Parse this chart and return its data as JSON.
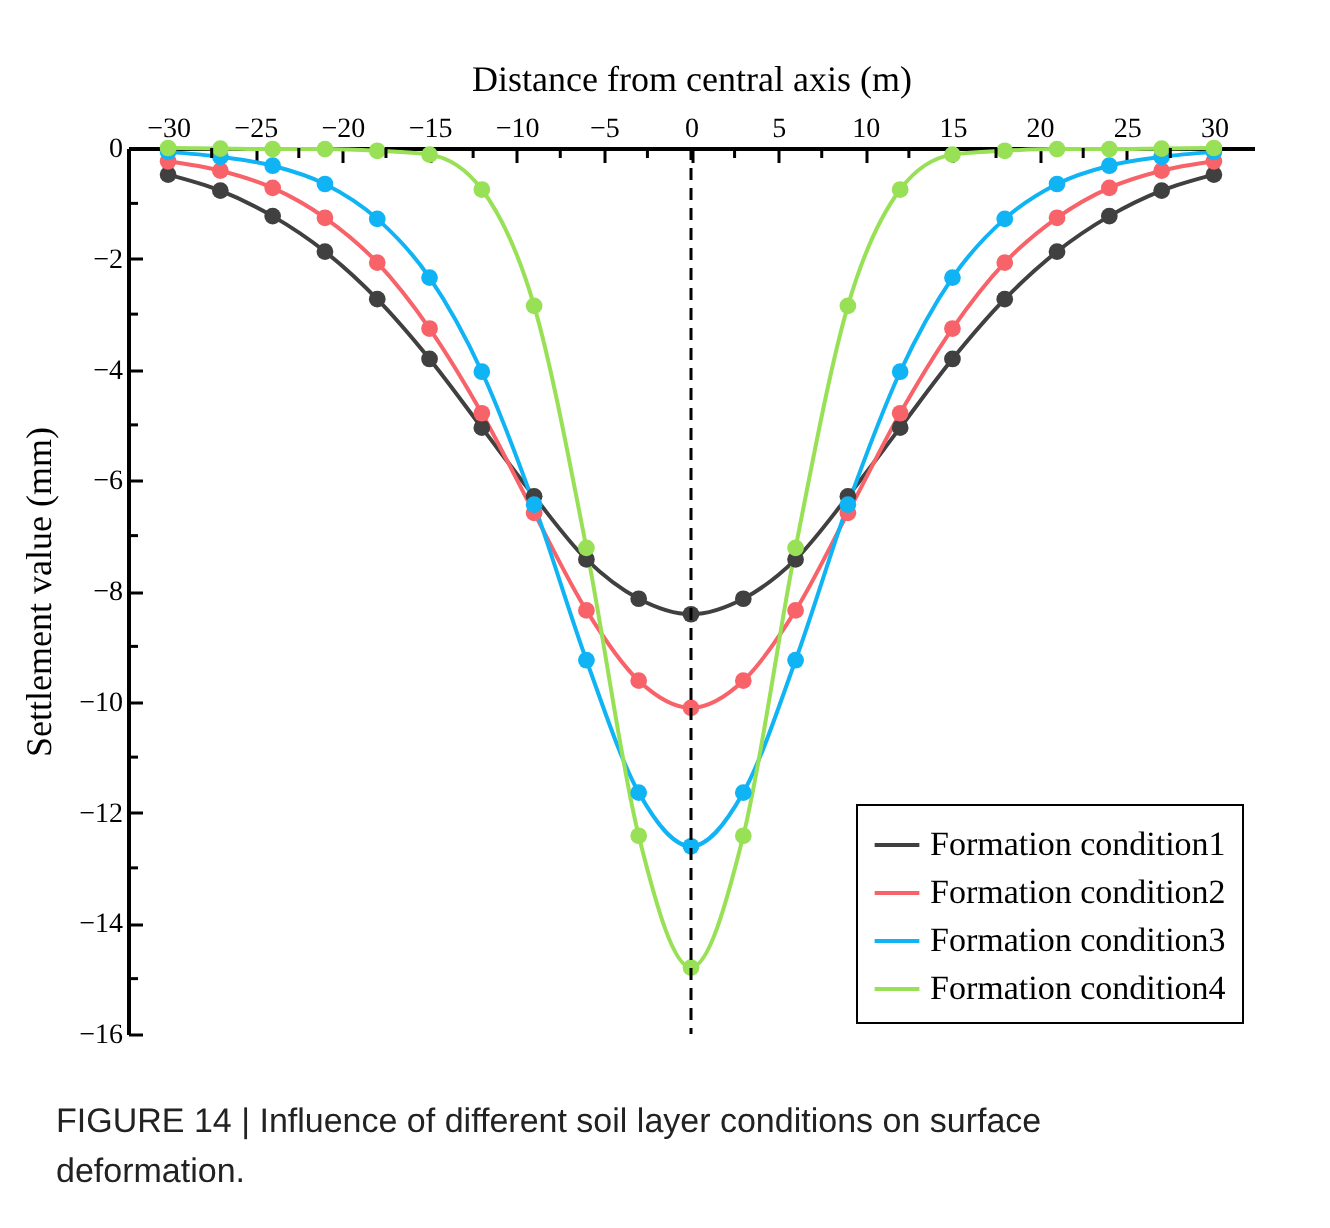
{
  "chart_data": {
    "type": "line",
    "xlabel": "Distance from central axis (m)",
    "ylabel": "Settlement value (mm)",
    "annotations": [
      "FIGURE 14 | Influence of different soil layer conditions on surface deformation."
    ],
    "x": [
      -30,
      -27,
      -24,
      -21,
      -18,
      -15,
      -12,
      -9,
      -6,
      -3,
      0,
      3,
      6,
      9,
      12,
      15,
      18,
      21,
      24,
      27,
      30
    ],
    "series": [
      {
        "name": "Formation condition1",
        "color": "#404040",
        "values": [
          -0.48,
          -0.77,
          -1.23,
          -1.87,
          -2.73,
          -3.81,
          -5.05,
          -6.29,
          -7.43,
          -8.14,
          -8.42,
          -8.14,
          -7.43,
          -6.29,
          -5.05,
          -3.81,
          -2.73,
          -1.87,
          -1.23,
          -0.77,
          -0.48
        ]
      },
      {
        "name": "Formation condition2",
        "color": "#f8636a",
        "values": [
          -0.24,
          -0.41,
          -0.72,
          -1.26,
          -2.07,
          -3.26,
          -4.79,
          -6.59,
          -8.35,
          -9.62,
          -10.11,
          -9.62,
          -8.35,
          -6.59,
          -4.79,
          -3.26,
          -2.07,
          -1.26,
          -0.72,
          -0.41,
          -0.24
        ]
      },
      {
        "name": "Formation condition3",
        "color": "#10b4f5",
        "values": [
          -0.07,
          -0.16,
          -0.32,
          -0.65,
          -1.28,
          -2.34,
          -4.04,
          -6.44,
          -9.25,
          -11.64,
          -12.61,
          -11.64,
          -9.25,
          -6.44,
          -4.04,
          -2.34,
          -1.28,
          -0.65,
          -0.32,
          -0.16,
          -0.07
        ]
      },
      {
        "name": "Formation condition4",
        "color": "#98e055",
        "values": [
          0,
          -0.01,
          -0.02,
          -0.02,
          -0.05,
          -0.12,
          -0.75,
          -2.85,
          -7.22,
          -12.42,
          -14.8,
          -12.42,
          -7.22,
          -2.85,
          -0.75,
          -0.12,
          -0.05,
          -0.02,
          -0.02,
          -0.01,
          0
        ]
      }
    ],
    "xlim": [
      -32.3,
      32.3
    ],
    "ylim": [
      -16,
      0
    ],
    "xticks": [
      -30,
      {
        "value": -27.5,
        "label": null
      },
      -25,
      {
        "value": -22.5,
        "label": null
      },
      -20,
      {
        "value": -17.5,
        "label": null
      },
      -15,
      {
        "value": -12.5,
        "label": null
      },
      -10,
      {
        "value": -7.5,
        "label": null
      },
      -5,
      {
        "value": -2.5,
        "label": null
      },
      0,
      {
        "value": 2.5,
        "label": null
      },
      5,
      {
        "value": 7.5,
        "label": null
      },
      10,
      {
        "value": 12.5,
        "label": null
      },
      15,
      {
        "value": 17.5,
        "label": null
      },
      20,
      {
        "value": 22.5,
        "label": null
      },
      25,
      {
        "value": 27.5,
        "label": null
      },
      30
    ],
    "yticks": [
      -16,
      {
        "value": -15,
        "label": null
      },
      -14,
      {
        "value": -13,
        "label": null
      },
      -12,
      {
        "value": -11,
        "label": null
      },
      -10,
      {
        "value": -9,
        "label": null
      },
      -8,
      {
        "value": -7,
        "label": null
      },
      -6,
      {
        "value": -5,
        "label": null
      },
      -4,
      {
        "value": -3,
        "label": null
      },
      -2,
      {
        "value": -1,
        "label": null
      },
      0
    ],
    "ref_lines": [
      {
        "axis": "x",
        "value": 0,
        "label": null,
        "color": "#000000",
        "line_style": "dashed"
      }
    ],
    "legend": "bottom right",
    "marker": "circle",
    "line_style": "solid",
    "grid": false
  }
}
